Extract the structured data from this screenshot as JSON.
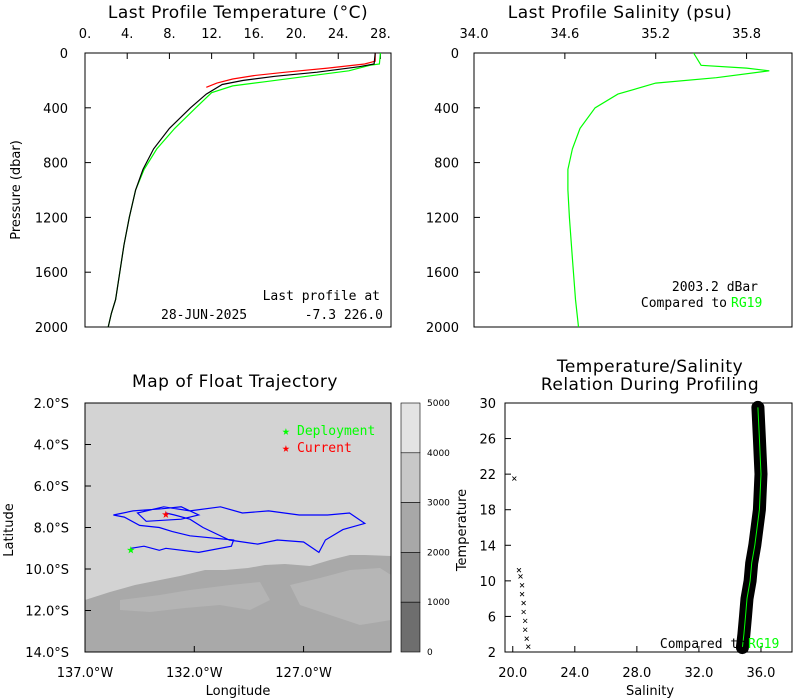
{
  "chart_data": [
    {
      "type": "line",
      "title": "Last Profile Temperature (°C)",
      "ylabel": "Pressure (dbar)",
      "x_ticks": [
        "0.",
        "4.",
        "8.",
        "12.",
        "16.",
        "20.",
        "24.",
        "28."
      ],
      "xlim": [
        0,
        29
      ],
      "y_ticks": [
        "0",
        "400",
        "800",
        "1200",
        "1600",
        "2000"
      ],
      "ylim": [
        2000,
        0
      ],
      "series": [
        {
          "color": "#000000",
          "x": [
            27.5,
            27.4,
            26.0,
            22.0,
            18.0,
            15.0,
            13.0,
            11.5,
            10.0,
            8.0,
            6.5,
            5.5,
            4.8,
            4.2,
            3.7,
            3.3,
            2.9,
            2.5,
            2.2
          ],
          "y": [
            0,
            80,
            100,
            140,
            170,
            200,
            230,
            300,
            400,
            550,
            700,
            850,
            1000,
            1200,
            1400,
            1600,
            1800,
            1900,
            2000
          ]
        },
        {
          "color": "#ff0000",
          "x": [
            27.5,
            27.5,
            26.5,
            23.0,
            19.0,
            16.0,
            14.0,
            12.5,
            11.5
          ],
          "y": [
            0,
            60,
            80,
            110,
            140,
            165,
            190,
            220,
            250
          ]
        },
        {
          "color": "#00ff00",
          "x": [
            28.0,
            27.9,
            27.0,
            25.0,
            21.0,
            17.0,
            14.0,
            12.0,
            10.5,
            8.5,
            6.8,
            5.6,
            4.8,
            4.2,
            3.7,
            3.3,
            2.9,
            2.5,
            2.2
          ],
          "y": [
            0,
            80,
            90,
            130,
            170,
            210,
            240,
            290,
            400,
            550,
            700,
            850,
            1000,
            1200,
            1400,
            1600,
            1800,
            1900,
            2000
          ]
        }
      ],
      "annotations": [
        "Last profile at",
        "28-JUN-2025",
        "-7.3 226.0"
      ]
    },
    {
      "type": "line",
      "title": "Last Profile Salinity (psu)",
      "x_ticks": [
        "34.0",
        "34.6",
        "35.2",
        "35.8"
      ],
      "xlim": [
        34.0,
        36.1
      ],
      "y_ticks": [
        "0",
        "400",
        "800",
        "1200",
        "1600",
        "2000"
      ],
      "ylim": [
        2000,
        0
      ],
      "series": [
        {
          "color": "#00ff00",
          "x": [
            35.45,
            35.5,
            35.8,
            35.95,
            35.6,
            35.2,
            34.95,
            34.8,
            34.7,
            34.65,
            34.62,
            34.62,
            34.63,
            34.65,
            34.67,
            34.69
          ],
          "y": [
            0,
            90,
            110,
            130,
            180,
            220,
            300,
            400,
            550,
            700,
            850,
            1000,
            1200,
            1500,
            1800,
            2000
          ]
        }
      ],
      "annotations": [
        "2003.2 dBar",
        "Compared to",
        "RG19"
      ]
    },
    {
      "type": "scatter",
      "title": "Map of Float Trajectory",
      "xlabel": "Longitude",
      "ylabel": "Latitude",
      "x_ticks": [
        "137.0°W",
        "132.0°W",
        "127.0°W"
      ],
      "y_ticks": [
        "2.0°S",
        "4.0°S",
        "6.0°S",
        "8.0°S",
        "10.0°S",
        "12.0°S",
        "14.0°S"
      ],
      "xlim": [
        137.0,
        123.0
      ],
      "ylim": [
        14.0,
        2.0
      ],
      "colorbar_ticks": [
        "5000",
        "4000",
        "3000",
        "2000",
        "1000",
        "0"
      ],
      "legend": [
        "Deployment",
        "Current"
      ],
      "legend_colors": [
        "#00ff00",
        "#ff0000"
      ],
      "deployment": {
        "lon": 134.9,
        "lat": 9.0
      },
      "current": {
        "lon": 133.3,
        "lat": 7.3
      },
      "trajectory": {
        "lon": [
          134.9,
          134.3,
          133.6,
          133.3,
          131.8,
          130.3,
          130.2,
          132.2,
          133.0,
          133.6,
          134.5,
          135.2,
          135.7,
          134.8,
          133.5,
          132.6,
          131.8,
          132.6,
          134.2,
          134.6,
          133.4,
          132.2,
          130.8,
          129.8,
          128.6,
          127.2,
          125.9,
          124.9,
          124.2,
          125.2,
          126.0,
          126.3,
          127.0,
          128.2,
          129.1,
          130.4,
          131.6,
          132.2,
          132.9,
          133.3
        ],
        "lat": [
          9.0,
          8.9,
          9.1,
          9.0,
          9.2,
          8.9,
          8.6,
          8.4,
          8.2,
          8.0,
          7.9,
          7.5,
          7.4,
          7.2,
          7.1,
          7.0,
          7.4,
          7.6,
          7.7,
          7.3,
          7.0,
          7.2,
          7.0,
          7.3,
          7.2,
          7.4,
          7.4,
          7.3,
          7.8,
          8.1,
          8.6,
          9.2,
          8.7,
          8.6,
          8.8,
          8.6,
          8.0,
          7.6,
          7.4,
          7.3
        ]
      }
    },
    {
      "type": "scatter",
      "title": "Temperature/Salinity",
      "subtitle": "Relation During Profiling",
      "xlabel": "Salinity",
      "ylabel": "Temperature",
      "x_ticks": [
        "20.0",
        "24.0",
        "28.0",
        "32.0",
        "36.0"
      ],
      "xlim": [
        19.5,
        38.0
      ],
      "y_ticks": [
        "2",
        "6",
        "10",
        "14",
        "18",
        "22",
        "26",
        "30"
      ],
      "ylim": [
        2,
        30
      ],
      "outlier_points": {
        "x": [
          20.1,
          20.4,
          20.5,
          20.6,
          20.6,
          20.7,
          20.7,
          20.8,
          20.8,
          20.9,
          21.0
        ],
        "y": [
          21.5,
          11.2,
          10.5,
          9.5,
          8.5,
          7.5,
          6.5,
          5.5,
          4.5,
          3.5,
          2.6
        ]
      },
      "main_band": {
        "x": [
          34.8,
          34.9,
          35.0,
          35.1,
          35.3,
          35.4,
          35.6,
          35.9,
          36.0,
          35.9,
          35.8
        ],
        "y": [
          2.5,
          4,
          6,
          8,
          10,
          12,
          14,
          18,
          22,
          26,
          29.5
        ]
      },
      "annotations": [
        "Compared to",
        "RG19"
      ]
    }
  ]
}
